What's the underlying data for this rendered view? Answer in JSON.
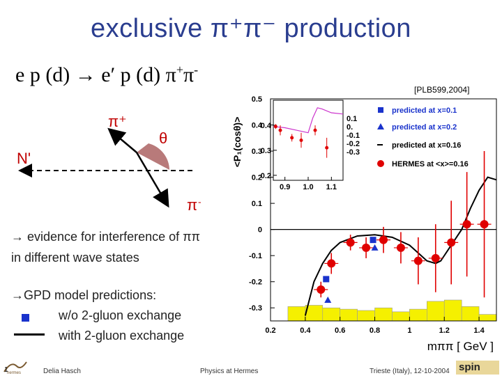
{
  "title": "exclusive π⁺π⁻ production",
  "reaction": {
    "main": "e p (d) → e′ p (d)  π",
    "plus": "+",
    "pi2": "π",
    "minus": "-"
  },
  "reference": "[PLB599,2004]",
  "diagram": {
    "pi_plus": "π⁺",
    "pi_minus": "π⁻",
    "theta": "θ",
    "n_prime": "N'"
  },
  "bullets": {
    "interference_line1": "→ evidence for interference of ππ",
    "interference_line2": "in different wave states",
    "gpd": "→GPD model predictions:",
    "without": "w/o 2-gluon exchange",
    "with": "with 2-gluon exchange"
  },
  "colors": {
    "title": "#2a3d8f",
    "model": "#1a33cc",
    "hermes": "#e00000",
    "hist": "#f5f000",
    "inset_line": "#cc33cc"
  },
  "chart_data": {
    "type": "scatter",
    "ylabel": "<P₁(cosθ)>",
    "xlabel": "mππ [ GeV ]",
    "xlim": [
      0.2,
      1.5
    ],
    "ylim": [
      -0.35,
      0.5
    ],
    "x_ticks": [
      "0.2",
      "0.4",
      "0.6",
      "0.8",
      "1",
      "1.2",
      "1.4"
    ],
    "y_ticks": [
      "0.5",
      "0.4",
      "0.3",
      "0.2",
      "0.1",
      "0",
      "-0.1",
      "-0.2",
      "-0.3"
    ],
    "legend": {
      "position": "top-right",
      "entries": [
        "predicted at x=0.1",
        "predicted at x=0.2",
        "predicted at x=0.16",
        "HERMES at <x>=0.16"
      ],
      "inset_values": [
        "0.1",
        "0.",
        "-0.1",
        "-0.2",
        "-0.3"
      ]
    },
    "hermes": {
      "x": [
        0.49,
        0.55,
        0.66,
        0.75,
        0.85,
        0.95,
        1.05,
        1.15,
        1.24,
        1.33,
        1.43
      ],
      "y": [
        -0.23,
        -0.13,
        -0.05,
        -0.07,
        -0.04,
        -0.07,
        -0.12,
        -0.11,
        -0.05,
        0.02,
        0.02
      ],
      "err": [
        0.03,
        0.04,
        0.03,
        0.04,
        0.05,
        0.06,
        0.09,
        0.13,
        0.16,
        0.2,
        0.28
      ]
    },
    "predicted_x01": {
      "x": [
        0.52,
        0.79
      ],
      "y": [
        -0.19,
        -0.04
      ]
    },
    "predicted_x02": {
      "x": [
        0.53,
        0.8
      ],
      "y": [
        -0.27,
        -0.07
      ]
    },
    "curve_x016": {
      "x": [
        0.4,
        0.45,
        0.5,
        0.55,
        0.6,
        0.7,
        0.8,
        0.9,
        1.0,
        1.05,
        1.1,
        1.15,
        1.18,
        1.22,
        1.3,
        1.35,
        1.4,
        1.45,
        1.5
      ],
      "y": [
        -0.33,
        -0.2,
        -0.13,
        -0.08,
        -0.05,
        -0.025,
        -0.02,
        -0.03,
        -0.06,
        -0.09,
        -0.12,
        -0.13,
        -0.12,
        -0.08,
        0.0,
        0.08,
        0.15,
        0.2,
        0.19
      ]
    },
    "histogram": {
      "edges": [
        0.3,
        0.4,
        0.5,
        0.6,
        0.7,
        0.8,
        0.9,
        1.0,
        1.1,
        1.2,
        1.3,
        1.4,
        1.5
      ],
      "heights": [
        0.055,
        0.06,
        0.05,
        0.045,
        0.04,
        0.05,
        0.035,
        0.045,
        0.075,
        0.08,
        0.055,
        0.025
      ]
    },
    "inset": {
      "x_ticks": [
        "0.9",
        "1.0",
        "1.1"
      ],
      "y_ticks": [
        "0.4",
        "0.3",
        "0.2"
      ],
      "xlim": [
        0.85,
        1.15
      ],
      "ylim": [
        0.18,
        0.5
      ],
      "points": {
        "x": [
          0.86,
          0.88,
          0.93,
          0.97,
          1.03,
          1.08
        ],
        "y": [
          0.395,
          0.38,
          0.35,
          0.34,
          0.38,
          0.31
        ],
        "err": [
          0.01,
          0.02,
          0.015,
          0.03,
          0.02,
          0.04
        ]
      },
      "curve": {
        "x": [
          0.85,
          0.9,
          0.95,
          1.0,
          1.02,
          1.04,
          1.06,
          1.1,
          1.15
        ],
        "y": [
          0.395,
          0.39,
          0.38,
          0.37,
          0.43,
          0.47,
          0.465,
          0.45,
          0.445
        ]
      }
    }
  },
  "footer": {
    "page": "1",
    "author": "Delia Hasch",
    "talk": "Physics at Hermes",
    "venue": "Trieste (Italy), 12-10-2004",
    "logo": "spin"
  }
}
